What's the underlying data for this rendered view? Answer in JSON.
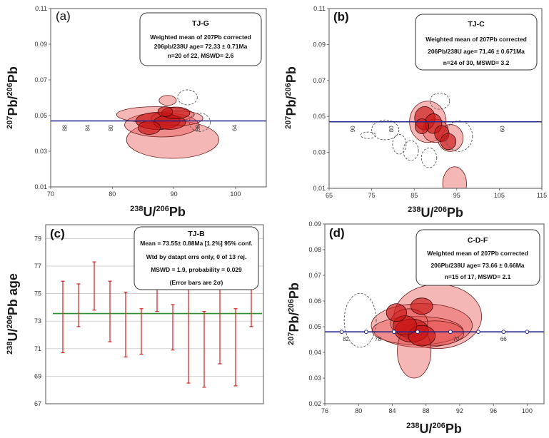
{
  "chart_data": [
    {
      "panel": "(a)",
      "type": "scatter",
      "title": "TJ-G",
      "annotation": [
        "Weighted mean of 207Pb corrected",
        "206pb/238U age= 72.33 ± 0.71Ma",
        "n=20 of 22, MSWD= 2.6"
      ],
      "xlabel": "238U/206Pb",
      "ylabel": "207Pb/206Pb",
      "xlim": [
        70,
        105
      ],
      "ylim": [
        0.01,
        0.11
      ],
      "x_ticks": [
        "70",
        "80",
        "90",
        "100"
      ],
      "y_ticks": [
        "0.01",
        "0.03",
        "0.05",
        "0.07",
        "0.09",
        "0.11"
      ],
      "concordia_y": 0.047,
      "concordia_age_labels": [
        {
          "text": "88",
          "x": 72.6
        },
        {
          "text": "84",
          "x": 76.3
        },
        {
          "text": "80",
          "x": 80.1
        },
        {
          "text": "68",
          "x": 94.2
        },
        {
          "text": "64",
          "x": 100.2
        }
      ],
      "ellipses": [
        {
          "cx": 89.8,
          "cy": 0.0365,
          "rx": 7.5,
          "ry": 0.0105,
          "rot": 0,
          "style": "light"
        },
        {
          "cx": 88.0,
          "cy": 0.0448,
          "rx": 6.0,
          "ry": 0.0068,
          "rot": 0,
          "style": "light"
        },
        {
          "cx": 87.0,
          "cy": 0.0505,
          "rx": 6.3,
          "ry": 0.0045,
          "rot": 0,
          "style": "light"
        },
        {
          "cx": 90.5,
          "cy": 0.0485,
          "rx": 4.2,
          "ry": 0.0042,
          "rot": 0,
          "style": "light"
        },
        {
          "cx": 89.0,
          "cy": 0.0585,
          "rx": 1.4,
          "ry": 0.0028,
          "rot": 0,
          "style": "light"
        },
        {
          "cx": 87.4,
          "cy": 0.047,
          "rx": 3.6,
          "ry": 0.0048,
          "rot": 0,
          "style": "dark"
        },
        {
          "cx": 89.3,
          "cy": 0.0462,
          "rx": 2.6,
          "ry": 0.004,
          "rot": 0,
          "style": "dark"
        },
        {
          "cx": 86.0,
          "cy": 0.0432,
          "rx": 1.8,
          "ry": 0.0038,
          "rot": 0,
          "style": "dark"
        },
        {
          "cx": 90.3,
          "cy": 0.0515,
          "rx": 2.3,
          "ry": 0.0033,
          "rot": 0,
          "style": "dark"
        },
        {
          "cx": 88.6,
          "cy": 0.0522,
          "rx": 1.2,
          "ry": 0.0028,
          "rot": 0,
          "style": "dark"
        },
        {
          "cx": 92.2,
          "cy": 0.0602,
          "rx": 1.6,
          "ry": 0.0042,
          "rot": 0,
          "style": "dashed"
        },
        {
          "cx": 94.2,
          "cy": 0.0462,
          "rx": 1.7,
          "ry": 0.0052,
          "rot": 0,
          "style": "dashed"
        }
      ]
    },
    {
      "panel": "(b)",
      "type": "scatter",
      "title": "TJ-C",
      "annotation": [
        "Weighted mean of 207Pb corrected",
        "206Pb/238U age= 71.46 ± 0.671Ma",
        "n=24 of 30, MSWD= 3.2"
      ],
      "xlabel": "238U/206Pb",
      "ylabel": "207Pb/206Pb",
      "xlim": [
        65,
        115
      ],
      "ylim": [
        0.01,
        0.11
      ],
      "x_ticks": [
        "65",
        "75",
        "85",
        "95",
        "105",
        "115"
      ],
      "y_ticks": [
        "0.01",
        "0.03",
        "0.05",
        "0.07",
        "0.09",
        "0.11"
      ],
      "concordia_y": 0.047,
      "concordia_age_labels": [
        {
          "text": "90",
          "x": 71.0
        },
        {
          "text": "80",
          "x": 80.1
        },
        {
          "text": "60",
          "x": 106.2
        }
      ],
      "ellipses": [
        {
          "cx": 94.5,
          "cy": 0.0125,
          "rx": 2.8,
          "ry": 0.0095,
          "rot": 0,
          "style": "light"
        },
        {
          "cx": 88.2,
          "cy": 0.047,
          "rx": 4.3,
          "ry": 0.0115,
          "rot": 0,
          "style": "light"
        },
        {
          "cx": 93.5,
          "cy": 0.038,
          "rx": 3.0,
          "ry": 0.0075,
          "rot": 0,
          "style": "light"
        },
        {
          "cx": 90.0,
          "cy": 0.042,
          "rx": 3.0,
          "ry": 0.0065,
          "rot": 0,
          "style": "light"
        },
        {
          "cx": 87.5,
          "cy": 0.049,
          "rx": 2.4,
          "ry": 0.0065,
          "rot": 0,
          "style": "dark"
        },
        {
          "cx": 89.5,
          "cy": 0.046,
          "rx": 2.0,
          "ry": 0.0055,
          "rot": 0,
          "style": "dark"
        },
        {
          "cx": 91.5,
          "cy": 0.0405,
          "rx": 1.7,
          "ry": 0.0045,
          "rot": 0,
          "style": "dark"
        },
        {
          "cx": 86.8,
          "cy": 0.0445,
          "rx": 1.6,
          "ry": 0.0042,
          "rot": 0,
          "style": "dark"
        },
        {
          "cx": 93.0,
          "cy": 0.036,
          "rx": 1.8,
          "ry": 0.0045,
          "rot": 0,
          "style": "dark"
        },
        {
          "cx": 74.2,
          "cy": 0.0395,
          "rx": 1.8,
          "ry": 0.0018,
          "rot": 0,
          "style": "dashed"
        },
        {
          "cx": 78.2,
          "cy": 0.0425,
          "rx": 3.2,
          "ry": 0.0055,
          "rot": 0,
          "style": "dashed"
        },
        {
          "cx": 81.5,
          "cy": 0.0345,
          "rx": 1.6,
          "ry": 0.0055,
          "rot": 0,
          "style": "dashed"
        },
        {
          "cx": 84.2,
          "cy": 0.031,
          "rx": 1.8,
          "ry": 0.0055,
          "rot": 0,
          "style": "dashed"
        },
        {
          "cx": 88.5,
          "cy": 0.027,
          "rx": 1.8,
          "ry": 0.0055,
          "rot": 0,
          "style": "dashed"
        },
        {
          "cx": 95.5,
          "cy": 0.039,
          "rx": 3.2,
          "ry": 0.0085,
          "rot": 0,
          "style": "dashed"
        },
        {
          "cx": 91.0,
          "cy": 0.0585,
          "rx": 2.3,
          "ry": 0.0045,
          "rot": 0,
          "style": "dashed"
        }
      ]
    },
    {
      "panel": "(c)",
      "type": "errorbar",
      "title": "TJ-B",
      "annotation": [
        "Mean = 73.55± 0.88Ma [1.2%] 95% conf.",
        "Wtd by datapt errs only, 0 of 13 rej.",
        "MSWD = 1.9, probability = 0.029",
        "(Error bars are 2σ)"
      ],
      "ylabel": "238U/206Pb age",
      "ylim": [
        67,
        80
      ],
      "y_ticks": [
        "67",
        "69",
        "71",
        "73",
        "75",
        "77",
        "79"
      ],
      "mean": 73.55,
      "errorbars": [
        {
          "low": 70.7,
          "high": 75.9
        },
        {
          "low": 72.6,
          "high": 75.7
        },
        {
          "low": 73.8,
          "high": 77.3
        },
        {
          "low": 71.5,
          "high": 75.9
        },
        {
          "low": 70.4,
          "high": 75.1
        },
        {
          "low": 70.6,
          "high": 73.9
        },
        {
          "low": 73.7,
          "high": 78.3
        },
        {
          "low": 70.9,
          "high": 74.2
        },
        {
          "low": 68.5,
          "high": 77.6
        },
        {
          "low": 68.2,
          "high": 73.7
        },
        {
          "low": 69.9,
          "high": 77.0
        },
        {
          "low": 68.3,
          "high": 73.9
        },
        {
          "low": 72.6,
          "high": 75.8
        }
      ]
    },
    {
      "panel": "(d)",
      "type": "scatter",
      "title": "C-D-F",
      "annotation": [
        "Weighted mean of 207Pb corrected",
        "206Pb/238U age= 73.66 ± 0.66Ma",
        "n=15 of 17, MSWD= 2.1"
      ],
      "xlabel": "238U/206Pb",
      "ylabel": "207Pb/206Pb",
      "xlim": [
        76,
        102
      ],
      "ylim": [
        0.02,
        0.09
      ],
      "x_ticks": [
        "76",
        "80",
        "84",
        "88",
        "92",
        "96",
        "100"
      ],
      "y_ticks": [
        "0.02",
        "0.03",
        "0.04",
        "0.05",
        "0.06",
        "0.07",
        "0.08",
        "0.09"
      ],
      "concordia_y": 0.048,
      "concordia_age_labels": [
        {
          "text": "82",
          "x": 78.5
        },
        {
          "text": "78",
          "x": 82.3
        },
        {
          "text": "70",
          "x": 91.6
        },
        {
          "text": "66",
          "x": 97.2
        }
      ],
      "concordia_marks_x": [
        78.0,
        80.9,
        84.2,
        87.0,
        90.9,
        94.2,
        97.2,
        100.0
      ],
      "ellipses": [
        {
          "cx": 89.4,
          "cy": 0.054,
          "rx": 5.2,
          "ry": 0.0125,
          "rot": 0,
          "style": "light"
        },
        {
          "cx": 87.5,
          "cy": 0.0505,
          "rx": 6.0,
          "ry": 0.0085,
          "rot": 0,
          "style": "light"
        },
        {
          "cx": 87.0,
          "cy": 0.0485,
          "rx": 5.4,
          "ry": 0.0055,
          "rot": 0,
          "style": "light"
        },
        {
          "cx": 89.0,
          "cy": 0.0475,
          "rx": 3.5,
          "ry": 0.0048,
          "rot": 0,
          "style": "light"
        },
        {
          "cx": 86.6,
          "cy": 0.0405,
          "rx": 2.0,
          "ry": 0.0105,
          "rot": 0,
          "style": "light"
        },
        {
          "cx": 86.0,
          "cy": 0.0515,
          "rx": 2.2,
          "ry": 0.0055,
          "rot": 0,
          "style": "light"
        },
        {
          "cx": 86.3,
          "cy": 0.0485,
          "rx": 2.0,
          "ry": 0.0045,
          "rot": 0,
          "style": "dark"
        },
        {
          "cx": 87.5,
          "cy": 0.0465,
          "rx": 1.6,
          "ry": 0.004,
          "rot": 0,
          "style": "dark"
        },
        {
          "cx": 85.5,
          "cy": 0.0505,
          "rx": 1.4,
          "ry": 0.0038,
          "rot": 0,
          "style": "dark"
        },
        {
          "cx": 87.5,
          "cy": 0.058,
          "rx": 1.3,
          "ry": 0.0032,
          "rot": 0,
          "style": "dark"
        },
        {
          "cx": 84.5,
          "cy": 0.0555,
          "rx": 1.2,
          "ry": 0.0035,
          "rot": 0,
          "style": "dark"
        },
        {
          "cx": 80.2,
          "cy": 0.0525,
          "rx": 1.9,
          "ry": 0.0105,
          "rot": 0,
          "style": "dashed"
        }
      ]
    }
  ]
}
